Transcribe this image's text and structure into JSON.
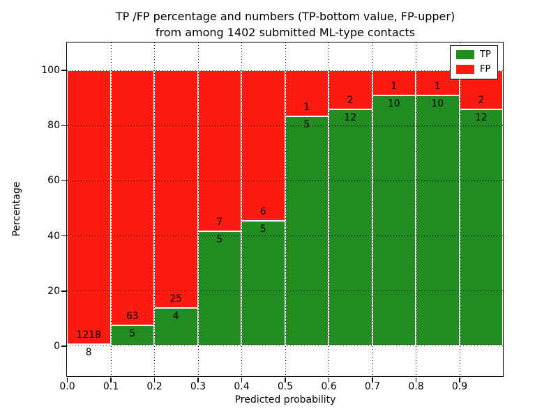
{
  "figure": {
    "title_line1": "TP /FP percentage and numbers (TP-bottom value, FP-upper)",
    "title_line2": "from among 1402 submitted ML-type contacts"
  },
  "axes": {
    "xlabel": "Predicted probability",
    "ylabel": "Percentage",
    "xtick_labels": [
      "0.0",
      "0.1",
      "0.2",
      "0.3",
      "0.4",
      "0.5",
      "0.6",
      "0.7",
      "0.8",
      "0.9"
    ],
    "ytick_values": [
      0,
      20,
      40,
      60,
      80,
      100
    ],
    "ytick_labels": [
      "0",
      "20",
      "40",
      "60",
      "80",
      "100"
    ],
    "xlim": [
      0.0,
      1.0
    ],
    "ylim": [
      -11,
      110
    ],
    "grid_style": "dotted"
  },
  "colors": {
    "tp": "#228b22",
    "fp": "#fb1b10",
    "bar_edge": "#ffffff",
    "frame": "#000000"
  },
  "legend": {
    "position": "upper-right",
    "items": [
      {
        "label": "TP",
        "color": "#228b22"
      },
      {
        "label": "FP",
        "color": "#fb1b10"
      }
    ]
  },
  "chart_data": {
    "type": "bar",
    "stacked": true,
    "normalized": "each bin scaled to 100%",
    "title": "TP /FP percentage and numbers (TP-bottom value, FP-upper) from among 1402 submitted ML-type contacts",
    "xlabel": "Predicted probability",
    "ylabel": "Percentage",
    "xlim": [
      0.0,
      1.0
    ],
    "ylim": [
      -11,
      110
    ],
    "bin_width": 0.1,
    "total_contacts": 1402,
    "bins": [
      {
        "range": "0.0-0.1",
        "tp": 8,
        "fp": 1218,
        "tp_percent": 0.65
      },
      {
        "range": "0.1-0.2",
        "tp": 5,
        "fp": 63,
        "tp_percent": 7.35
      },
      {
        "range": "0.2-0.3",
        "tp": 4,
        "fp": 25,
        "tp_percent": 13.79
      },
      {
        "range": "0.3-0.4",
        "tp": 5,
        "fp": 7,
        "tp_percent": 41.67
      },
      {
        "range": "0.4-0.5",
        "tp": 5,
        "fp": 6,
        "tp_percent": 45.45
      },
      {
        "range": "0.5-0.6",
        "tp": 5,
        "fp": 1,
        "tp_percent": 83.33
      },
      {
        "range": "0.6-0.7",
        "tp": 12,
        "fp": 2,
        "tp_percent": 85.71
      },
      {
        "range": "0.7-0.8",
        "tp": 10,
        "fp": 1,
        "tp_percent": 90.91
      },
      {
        "range": "0.8-0.9",
        "tp": 10,
        "fp": 1,
        "tp_percent": 90.91
      },
      {
        "range": "0.9-1.0",
        "tp": 12,
        "fp": 2,
        "tp_percent": 85.71
      }
    ]
  }
}
